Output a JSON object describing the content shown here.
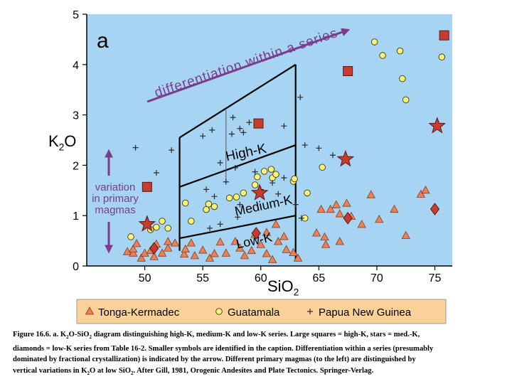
{
  "colors": {
    "plot_bg": "#a6d4f2",
    "legend_bg": "#fbd19a",
    "series_orange": "#e8825a",
    "series_yellow": "#fcf27a",
    "cross": "#2a2a2a",
    "red_marker": "#c73c31",
    "arrow_purple": "#7b3b8c"
  },
  "chart_data": {
    "type": "scatter",
    "panel_label": "a",
    "xlabel": "SiO2",
    "ylabel": "K2O",
    "xlim": [
      45,
      76.5
    ],
    "ylim": [
      0,
      5
    ],
    "xticks": [
      50,
      55,
      60,
      65,
      70,
      75
    ],
    "yticks": [
      0,
      1,
      2,
      3,
      4,
      5
    ],
    "field_labels": [
      {
        "text": "High-K",
        "x": 58.8,
        "y": 2.17
      },
      {
        "text": "Medium-K",
        "x": 60.3,
        "y": 1.12
      },
      {
        "text": "Low-K",
        "x": 59.5,
        "y": 0.42
      }
    ],
    "annotations": {
      "arrow_top": "differentiation within a series",
      "arrow_left": [
        "variation",
        "in primary",
        "magmas"
      ]
    },
    "boundaries": [
      {
        "name": "low-medium",
        "points": [
          [
            53,
            0.55
          ],
          [
            63,
            1.0
          ]
        ]
      },
      {
        "name": "medium-high",
        "points": [
          [
            53,
            1.57
          ],
          [
            63,
            2.4
          ]
        ]
      },
      {
        "name": "upper",
        "points": [
          [
            53,
            2.55
          ],
          [
            63,
            4.0
          ]
        ]
      }
    ],
    "legend": [
      "Tonga-Kermadec",
      "Guatamala",
      "Papua New Guinea"
    ],
    "series": [
      {
        "name": "Tonga-Kermadec",
        "marker": "triangle",
        "points": [
          [
            48.5,
            0.28
          ],
          [
            49,
            0.25
          ],
          [
            49,
            0.33
          ],
          [
            49.3,
            0.44
          ],
          [
            49.7,
            0.15
          ],
          [
            50,
            0.25
          ],
          [
            50.5,
            0.3
          ],
          [
            50.8,
            0.18
          ],
          [
            51,
            0.43
          ],
          [
            51.5,
            0.25
          ],
          [
            52,
            0.35
          ],
          [
            52,
            0.48
          ],
          [
            52.6,
            0.45
          ],
          [
            53.4,
            0.23
          ],
          [
            53.5,
            0.33
          ],
          [
            54,
            0.45
          ],
          [
            54.3,
            0.2
          ],
          [
            55,
            0.31
          ],
          [
            55.6,
            0.15
          ],
          [
            56,
            0.24
          ],
          [
            56.5,
            0.47
          ],
          [
            57,
            0.25
          ],
          [
            57.8,
            0.48
          ],
          [
            58.2,
            0.35
          ],
          [
            58.6,
            0.2
          ],
          [
            59.2,
            0.3
          ],
          [
            59.5,
            0.62
          ],
          [
            60,
            0.42
          ],
          [
            60.5,
            0.66
          ],
          [
            60.5,
            0.24
          ],
          [
            61,
            0.12
          ],
          [
            61.3,
            0.82
          ],
          [
            61.5,
            0.48
          ],
          [
            62,
            0.58
          ],
          [
            62.2,
            0.32
          ],
          [
            62.8,
            0.26
          ],
          [
            63.2,
            0.15
          ],
          [
            64.8,
            0.65
          ],
          [
            65.2,
            1.12
          ],
          [
            65.5,
            0.57
          ],
          [
            65.6,
            0.42
          ],
          [
            66,
            1.12
          ],
          [
            66.5,
            1.21
          ],
          [
            66.8,
            0.48
          ],
          [
            66.8,
            1.03
          ],
          [
            67.4,
            1.24
          ],
          [
            67.8,
            0.98
          ],
          [
            68.7,
            0.82
          ],
          [
            69.5,
            1.41
          ],
          [
            70.2,
            0.92
          ],
          [
            71.5,
            1.12
          ],
          [
            72.5,
            0.6
          ],
          [
            73.8,
            1.42
          ],
          [
            74.2,
            1.5
          ]
        ]
      },
      {
        "name": "Guatamala",
        "marker": "circle",
        "points": [
          [
            48.8,
            0.58
          ],
          [
            50.5,
            0.72
          ],
          [
            51,
            0.77
          ],
          [
            51.5,
            0.89
          ],
          [
            52,
            0.75
          ],
          [
            53.5,
            1.25
          ],
          [
            54,
            0.89
          ],
          [
            55.3,
            1.12
          ],
          [
            55.5,
            1.23
          ],
          [
            56,
            1.18
          ],
          [
            57.3,
            1.35
          ],
          [
            57.9,
            1.37
          ],
          [
            58.5,
            1.45
          ],
          [
            59.5,
            1.61
          ],
          [
            59.7,
            1.77
          ],
          [
            60.3,
            1.88
          ],
          [
            60.9,
            1.92
          ],
          [
            61,
            1.75
          ],
          [
            61.3,
            1.82
          ],
          [
            62.8,
            1.68
          ],
          [
            62.9,
            1.73
          ],
          [
            63.8,
            0.95
          ],
          [
            64,
            1.45
          ],
          [
            65.3,
            1.96
          ],
          [
            69.8,
            4.45
          ],
          [
            70.5,
            4.18
          ],
          [
            72,
            4.27
          ],
          [
            72.2,
            3.72
          ],
          [
            72.5,
            3.3
          ],
          [
            75.6,
            4.15
          ]
        ]
      },
      {
        "name": "Papua New Guinea",
        "marker": "cross",
        "points": [
          [
            55,
            2.58
          ],
          [
            55.8,
            2.7
          ],
          [
            57.5,
            2.62
          ],
          [
            58.5,
            2.65
          ],
          [
            58.2,
            2.73
          ],
          [
            63.4,
            3.35
          ],
          [
            63.8,
            2.4
          ],
          [
            65,
            2.34
          ],
          [
            66.2,
            2.2
          ],
          [
            49.2,
            2.35
          ],
          [
            52.3,
            2.3
          ],
          [
            51,
            1.85
          ],
          [
            56.5,
            2.05
          ],
          [
            57.8,
            1.95
          ],
          [
            59.5,
            1.87
          ],
          [
            61,
            1.65
          ],
          [
            62,
            1.75
          ],
          [
            56,
            1.38
          ],
          [
            55.3,
            1.52
          ],
          [
            57,
            1.67
          ],
          [
            58.2,
            1.22
          ],
          [
            60,
            1.52
          ],
          [
            61.5,
            1.43
          ],
          [
            57.6,
            2.95
          ],
          [
            59,
            2.85
          ],
          [
            62,
            2.78
          ],
          [
            55.6,
            0.75
          ],
          [
            56.5,
            0.83
          ],
          [
            58,
            0.97
          ],
          [
            63,
            1.22
          ],
          [
            63.5,
            0.95
          ]
        ]
      },
      {
        "name": "high-K squares",
        "marker": "square",
        "points": [
          [
            50.2,
            1.57
          ],
          [
            59.8,
            2.83
          ],
          [
            67.5,
            3.87
          ],
          [
            75.8,
            4.58
          ]
        ]
      },
      {
        "name": "med-K stars",
        "marker": "star",
        "points": [
          [
            50.2,
            0.83
          ],
          [
            59.9,
            1.45
          ],
          [
            67.3,
            2.12
          ],
          [
            75.2,
            2.78
          ]
        ]
      },
      {
        "name": "low-K diamonds",
        "marker": "diamond",
        "points": [
          [
            50.8,
            0.35
          ],
          [
            59.6,
            0.65
          ],
          [
            67.5,
            0.95
          ],
          [
            75,
            1.13
          ]
        ]
      }
    ]
  },
  "caption": {
    "lines": [
      [
        "Figure 16.6. a. K",
        {
          "sub": "2"
        },
        "O-SiO",
        {
          "sub": "2"
        },
        " diagram distinguishing high-K, medium-K and low-K series. Large squares = high-K, stars = med.-K,"
      ],
      [
        "diamonds = low-K series from Table 16-2. Smaller symbols are identified in the caption. Differentiation within a series (presumably"
      ],
      [
        "dominated by fractional crystallization) is indicated by the arrow. Different primary magmas (to the left) are distinguished by"
      ],
      [
        "vertical variations in K",
        {
          "sub": "2"
        },
        "O at low SiO",
        {
          "sub": "2"
        },
        ". After Gill, 1981, Orogenic Andesites and Plate Tectonics. Springer-Verlag."
      ]
    ]
  }
}
